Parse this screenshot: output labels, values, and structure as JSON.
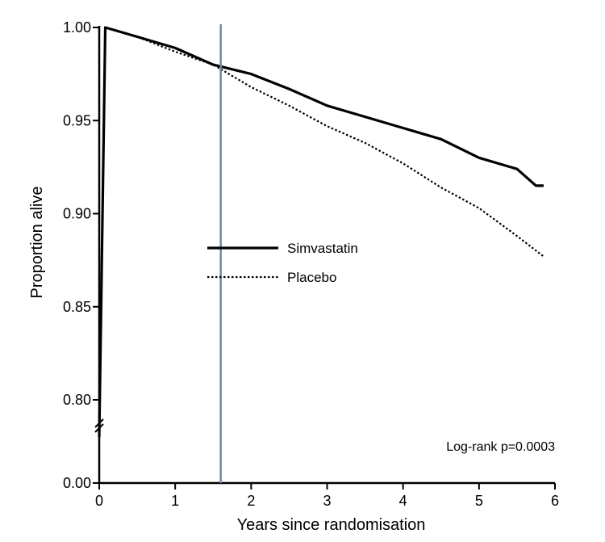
{
  "chart_data": {
    "type": "line",
    "title": "",
    "xlabel": "Years since randomisation",
    "ylabel": "Proportion alive",
    "xlim": [
      0,
      6
    ],
    "ylim": [
      0.0,
      1.0
    ],
    "y_axis_break": {
      "from": 0.0,
      "to": 0.78
    },
    "x_ticks": [
      0,
      1,
      2,
      3,
      4,
      5,
      6
    ],
    "x_tick_labels": [
      "0",
      "1",
      "2",
      "3",
      "4",
      "5",
      "6"
    ],
    "y_ticks": [
      0.0,
      0.8,
      0.85,
      0.9,
      0.95,
      1.0
    ],
    "y_tick_labels": [
      "0.00",
      "0.80",
      "0.85",
      "0.90",
      "0.95",
      "1.00"
    ],
    "grid": false,
    "legend_position": "center",
    "reference_line": {
      "x": 1.6,
      "color": "#6e8aaa"
    },
    "annotation": "Log-rank p=0.0003",
    "series": [
      {
        "name": "Simvastatin",
        "style": "solid",
        "color": "#000000",
        "x": [
          0,
          0.08,
          0.5,
          1.0,
          1.5,
          2.0,
          2.5,
          3.0,
          3.5,
          4.0,
          4.5,
          5.0,
          5.5,
          5.75,
          5.85
        ],
        "y": [
          0.78,
          1.0,
          0.995,
          0.989,
          0.98,
          0.975,
          0.967,
          0.958,
          0.952,
          0.946,
          0.94,
          0.93,
          0.924,
          0.915,
          0.915
        ]
      },
      {
        "name": "Placebo",
        "style": "dotted",
        "color": "#000000",
        "x": [
          0,
          0.08,
          0.5,
          1.0,
          1.5,
          2.0,
          2.5,
          3.0,
          3.5,
          4.0,
          4.5,
          5.0,
          5.5,
          5.85
        ],
        "y": [
          0.78,
          1.0,
          0.995,
          0.987,
          0.98,
          0.968,
          0.958,
          0.947,
          0.938,
          0.927,
          0.914,
          0.903,
          0.888,
          0.877
        ]
      }
    ]
  }
}
